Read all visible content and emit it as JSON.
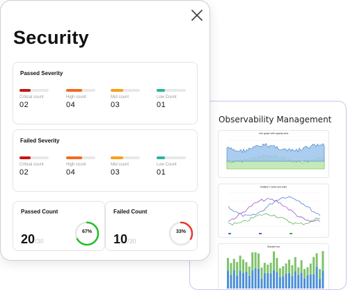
{
  "security": {
    "title": "Security",
    "passed_severity": {
      "title": "Passed Severity",
      "items": [
        {
          "label": "Critical count",
          "value": "02",
          "color": "#c81414",
          "fill": 0.38
        },
        {
          "label": "High count",
          "value": "04",
          "color": "#f26a21",
          "fill": 0.55
        },
        {
          "label": "Mid count",
          "value": "03",
          "color": "#f7a01a",
          "fill": 0.42
        },
        {
          "label": "Low Count",
          "value": "01",
          "color": "#27b5a0",
          "fill": 0.28
        }
      ]
    },
    "failed_severity": {
      "title": "Failed Severity",
      "items": [
        {
          "label": "Critical count",
          "value": "02",
          "color": "#c81414",
          "fill": 0.38
        },
        {
          "label": "High count",
          "value": "04",
          "color": "#f26a21",
          "fill": 0.55
        },
        {
          "label": "Mid count",
          "value": "03",
          "color": "#f7a01a",
          "fill": 0.42
        },
        {
          "label": "Low Count",
          "value": "01",
          "color": "#27b5a0",
          "fill": 0.28
        }
      ]
    },
    "passed_count": {
      "title": "Passed Count",
      "value": "20",
      "total": "/30",
      "percent_label": "67%",
      "fraction": 0.67,
      "color": "#22c02a"
    },
    "failed_count": {
      "title": "Failed Count",
      "value": "10",
      "total": "/30",
      "percent_label": "33%",
      "fraction": 0.33,
      "color": "#e53b2f"
    }
  },
  "observability": {
    "title": "Observability Management",
    "charts": [
      {
        "title": "Line graph with opacity area"
      },
      {
        "title": "Multiple Y-Axes and units"
      },
      {
        "title": "Stacked bar"
      }
    ]
  }
}
